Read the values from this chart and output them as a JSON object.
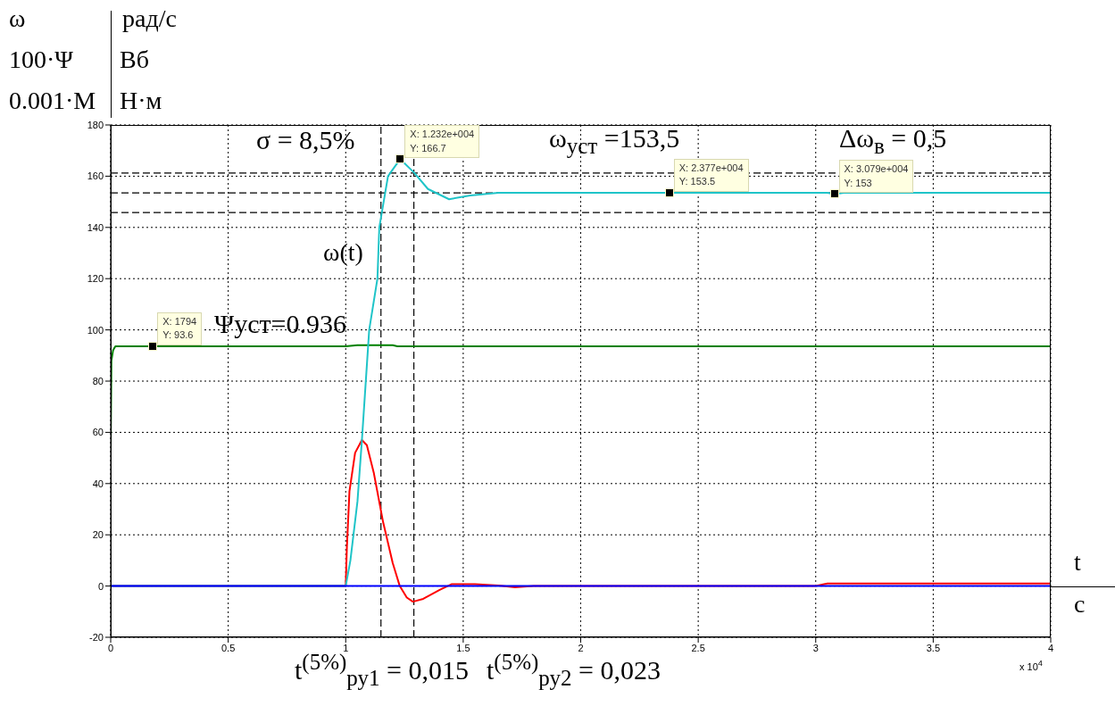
{
  "chart_data": {
    "type": "line",
    "xlim": [
      0,
      4
    ],
    "xticks": [
      0,
      0.5,
      1,
      1.5,
      2,
      2.5,
      3,
      3.5,
      4
    ],
    "ylim": [
      -20,
      180
    ],
    "yticks": [
      -20,
      0,
      20,
      40,
      60,
      80,
      100,
      120,
      140,
      160,
      180
    ],
    "grid": true,
    "line_style": "solid",
    "marker": "none",
    "series": [
      {
        "color": "#008000",
        "x": [
          0,
          0.003,
          0.01,
          0.02,
          0.1794,
          1.0,
          1.05,
          1.2,
          1.22,
          4
        ],
        "values": [
          52,
          88,
          92,
          93.6,
          93.6,
          93.6,
          94,
          94,
          93.6,
          93.6
        ]
      },
      {
        "color": "#ff0000",
        "x": [
          0,
          1,
          1.005,
          1.016,
          1.04,
          1.069,
          1.09,
          1.12,
          1.159,
          1.2,
          1.23,
          1.26,
          1.286,
          1.33,
          1.4,
          1.45,
          1.55,
          1.65,
          1.72,
          1.8,
          3.0,
          3.05,
          4
        ],
        "values": [
          0,
          0,
          15,
          37,
          52,
          57,
          55,
          44,
          25,
          9,
          0,
          -4.5,
          -6.1,
          -5,
          -1.5,
          0.7,
          0.7,
          0.2,
          -0.5,
          0,
          0,
          1,
          1
        ]
      },
      {
        "color": "#1fc4c8",
        "x": [
          0,
          1,
          1.02,
          1.05,
          1.069,
          1.1,
          1.135,
          1.143,
          1.18,
          1.232,
          1.29,
          1.35,
          1.44,
          1.53,
          1.65,
          3.05,
          3.079,
          3.12,
          4
        ],
        "values": [
          0,
          0,
          10,
          33,
          57,
          100,
          120,
          140,
          160,
          166.7,
          161.5,
          155,
          151,
          152.5,
          153.5,
          153.5,
          153,
          153.5,
          153.5
        ]
      },
      {
        "color": "#0000ff",
        "x": [
          0,
          4
        ],
        "values": [
          0,
          0
        ]
      }
    ],
    "ref_lines": [
      {
        "axis": "y",
        "value": 161.2,
        "color": "#000000",
        "line_style": "dashed"
      },
      {
        "axis": "y",
        "value": 153.5,
        "color": "#000000",
        "line_style": "dashed"
      },
      {
        "axis": "y",
        "value": 145.8,
        "color": "#000000",
        "line_style": "dashed"
      },
      {
        "axis": "x",
        "value": 1.15,
        "color": "#000000",
        "line_style": "dashed"
      },
      {
        "axis": "x",
        "value": 1.29,
        "color": "#000000",
        "line_style": "dashed"
      }
    ],
    "annotations": [
      "ω",
      "рад/с",
      "100·Ψ",
      "Вб",
      "0.001·M",
      "Н·м",
      "σ = 8,5%",
      "ω$_{уст}$ =153,5",
      "Δω$_{в}$ = 0,5",
      "ω(t)",
      "Ψуст=0.936",
      "t$^{(5%)}$$_{ру1}$ = 0,015",
      "t$^{(5%)}$$_{ру2}$ = 0,023",
      "t",
      "c",
      "x 10$^{4}$",
      {
        "text": "X: 1794\nY: 93.6",
        "x": 0.1794,
        "y": 93.6
      },
      {
        "text": "X: 1.232e+004\nY: 166.7",
        "x": 1.232,
        "y": 166.7
      },
      {
        "text": "X: 2.377e+004\nY: 153.5",
        "x": 2.377,
        "y": 153.5
      },
      {
        "text": "X: 3.079e+004\nY: 153",
        "x": 3.079,
        "y": 153
      }
    ]
  }
}
